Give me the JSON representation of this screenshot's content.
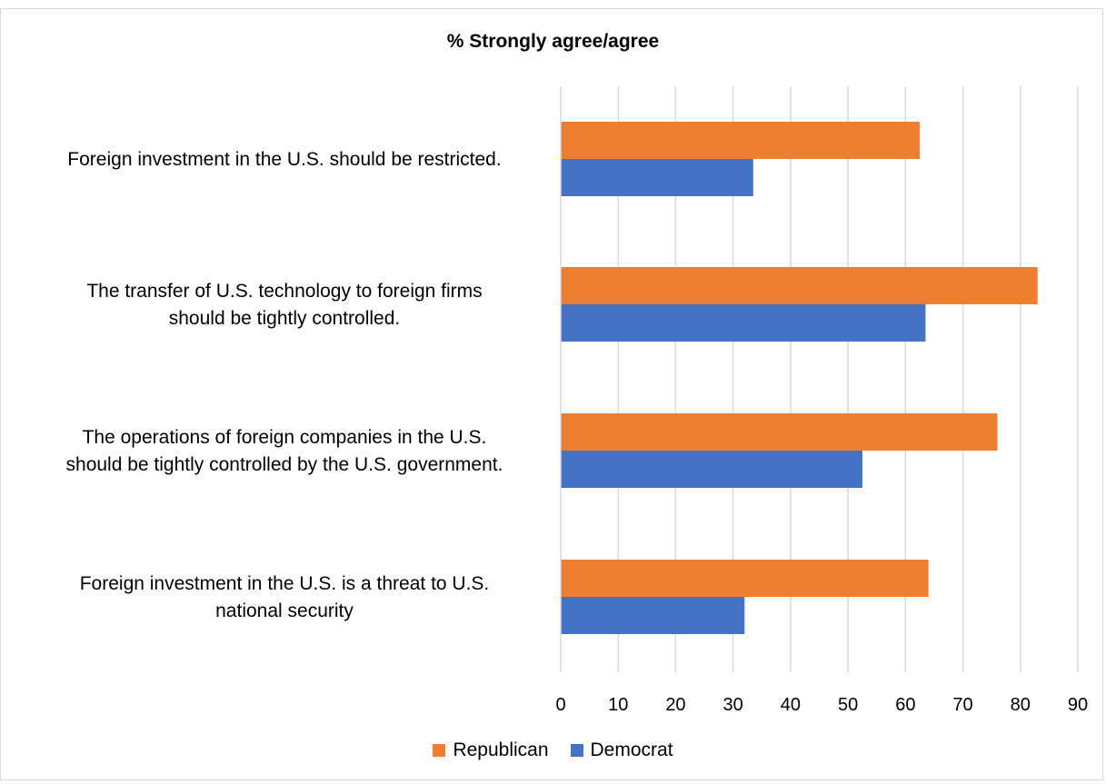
{
  "chart_data": {
    "type": "bar",
    "orientation": "horizontal",
    "title": "% Strongly agree/agree",
    "categories": [
      [
        "Foreign investment in the U.S. should be restricted."
      ],
      [
        "The transfer of U.S. technology to foreign firms",
        "should be tightly controlled."
      ],
      [
        "The operations of foreign companies in the U.S.",
        "should be tightly controlled by the U.S. government."
      ],
      [
        "Foreign investment in the U.S. is a threat to U.S.",
        "national security"
      ]
    ],
    "series": [
      {
        "name": "Republican",
        "color": "#ED7D31",
        "values": [
          62.5,
          83.0,
          76.0,
          64.0
        ]
      },
      {
        "name": "Democrat",
        "color": "#4472C4",
        "values": [
          33.5,
          63.5,
          52.5,
          32.0
        ]
      }
    ],
    "xlim": [
      0,
      90
    ],
    "xticks": [
      0,
      10,
      20,
      30,
      40,
      50,
      60,
      70,
      80,
      90
    ],
    "grid": true,
    "legend_position": "bottom"
  }
}
